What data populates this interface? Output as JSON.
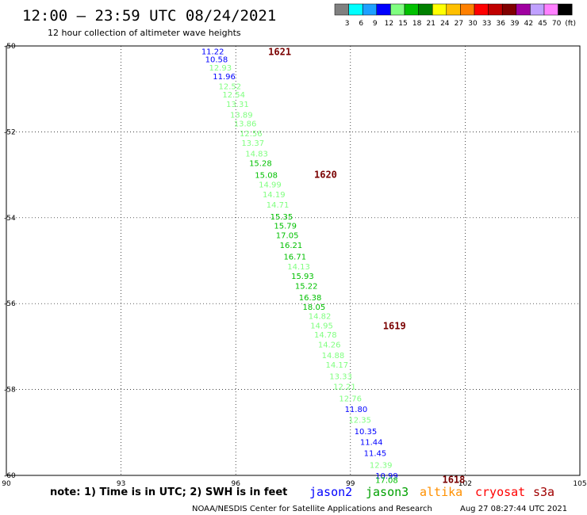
{
  "header": {
    "title": "12:00 – 23:59 UTC 08/24/2021",
    "subtitle": "12 hour collection of altimeter wave heights"
  },
  "colorbar": {
    "labels": [
      "3",
      "6",
      "9",
      "12",
      "15",
      "18",
      "21",
      "24",
      "27",
      "30",
      "33",
      "36",
      "39",
      "42",
      "45",
      "70",
      "(ft)"
    ],
    "colors": [
      "#808080",
      "#00ffff",
      "#1ea0ff",
      "#0000ff",
      "#80ff80",
      "#00c000",
      "#008000",
      "#ffff00",
      "#ffc000",
      "#ff8000",
      "#ff0000",
      "#c00000",
      "#800000",
      "#a000a0",
      "#c0a0ff",
      "#ff80ff",
      "#000000"
    ]
  },
  "notes": {
    "note": "note:  1) Time is in UTC;  2) SWH is in feet",
    "credit": "NOAA/NESDIS Center for Satellite Applications and Research",
    "timestamp": "Aug 27 08:27:44 UTC 2021"
  },
  "satellites": [
    {
      "name": "jason2",
      "color": "#0000ff"
    },
    {
      "name": "jason3",
      "color": "#00a000"
    },
    {
      "name": "altika",
      "color": "#ff9000"
    },
    {
      "name": "cryosat",
      "color": "#ff0000"
    },
    {
      "name": "s3a",
      "color": "#a00000"
    }
  ],
  "chart_data": {
    "type": "scatter",
    "title": "12:00 – 23:59 UTC 08/24/2021",
    "subtitle": "12 hour collection of altimeter wave heights",
    "xlim": [
      90,
      105
    ],
    "ylim": [
      -60,
      -50
    ],
    "x_ticks": [
      "90",
      "93",
      "96",
      "99",
      "102",
      "105"
    ],
    "y_ticks": [
      "-50",
      "-52",
      "-54",
      "-56",
      "-58",
      "-60"
    ],
    "grid": true,
    "units": "ft",
    "points": [
      {
        "x": 95.1,
        "y": -50.12,
        "v": "11.22",
        "c": "#0000ff"
      },
      {
        "x": 95.2,
        "y": -50.3,
        "v": "10.58",
        "c": "#0000ff"
      },
      {
        "x": 95.3,
        "y": -50.5,
        "v": "12.93",
        "c": "#80ff80"
      },
      {
        "x": 95.4,
        "y": -50.7,
        "v": "11.96",
        "c": "#0000ff"
      },
      {
        "x": 95.55,
        "y": -50.93,
        "v": "12.52",
        "c": "#80ff80"
      },
      {
        "x": 95.65,
        "y": -51.13,
        "v": "12.54",
        "c": "#80ff80"
      },
      {
        "x": 95.75,
        "y": -51.35,
        "v": "13.31",
        "c": "#80ff80"
      },
      {
        "x": 95.85,
        "y": -51.6,
        "v": "13.89",
        "c": "#80ff80"
      },
      {
        "x": 95.95,
        "y": -51.8,
        "v": "13.86",
        "c": "#80ff80"
      },
      {
        "x": 96.1,
        "y": -52.03,
        "v": "12.56",
        "c": "#80ff80"
      },
      {
        "x": 96.15,
        "y": -52.25,
        "v": "13.37",
        "c": "#80ff80"
      },
      {
        "x": 96.25,
        "y": -52.5,
        "v": "14.83",
        "c": "#80ff80"
      },
      {
        "x": 96.35,
        "y": -52.72,
        "v": "15.28",
        "c": "#00c000"
      },
      {
        "x": 96.5,
        "y": -53.0,
        "v": "15.08",
        "c": "#00c000"
      },
      {
        "x": 96.6,
        "y": -53.22,
        "v": "14.99",
        "c": "#80ff80"
      },
      {
        "x": 96.7,
        "y": -53.45,
        "v": "14.19",
        "c": "#80ff80"
      },
      {
        "x": 96.8,
        "y": -53.69,
        "v": "14.71",
        "c": "#80ff80"
      },
      {
        "x": 96.9,
        "y": -53.97,
        "v": "15.35",
        "c": "#00c000"
      },
      {
        "x": 97.0,
        "y": -54.18,
        "v": "15.79",
        "c": "#00c000"
      },
      {
        "x": 97.05,
        "y": -54.4,
        "v": "17.05",
        "c": "#00c000"
      },
      {
        "x": 97.15,
        "y": -54.63,
        "v": "16.21",
        "c": "#00c000"
      },
      {
        "x": 97.25,
        "y": -54.9,
        "v": "16.71",
        "c": "#00c000"
      },
      {
        "x": 97.35,
        "y": -55.13,
        "v": "14.13",
        "c": "#80ff80"
      },
      {
        "x": 97.45,
        "y": -55.35,
        "v": "15.93",
        "c": "#00c000"
      },
      {
        "x": 97.55,
        "y": -55.58,
        "v": "15.22",
        "c": "#00c000"
      },
      {
        "x": 97.65,
        "y": -55.85,
        "v": "16.38",
        "c": "#00c000"
      },
      {
        "x": 97.75,
        "y": -56.07,
        "v": "18.05",
        "c": "#00c000"
      },
      {
        "x": 97.9,
        "y": -56.28,
        "v": "14.82",
        "c": "#80ff80"
      },
      {
        "x": 97.95,
        "y": -56.5,
        "v": "14.95",
        "c": "#80ff80"
      },
      {
        "x": 98.05,
        "y": -56.72,
        "v": "14.78",
        "c": "#80ff80"
      },
      {
        "x": 98.15,
        "y": -56.95,
        "v": "14.26",
        "c": "#80ff80"
      },
      {
        "x": 98.25,
        "y": -57.2,
        "v": "14.88",
        "c": "#80ff80"
      },
      {
        "x": 98.35,
        "y": -57.42,
        "v": "14.17",
        "c": "#80ff80"
      },
      {
        "x": 98.45,
        "y": -57.68,
        "v": "13.33",
        "c": "#80ff80"
      },
      {
        "x": 98.55,
        "y": -57.92,
        "v": "12.21",
        "c": "#80ff80"
      },
      {
        "x": 98.7,
        "y": -58.2,
        "v": "12.76",
        "c": "#80ff80"
      },
      {
        "x": 98.85,
        "y": -58.45,
        "v": "11.80",
        "c": "#0000ff"
      },
      {
        "x": 98.95,
        "y": -58.7,
        "v": "12.35",
        "c": "#80ff80"
      },
      {
        "x": 99.1,
        "y": -58.97,
        "v": "10.35",
        "c": "#0000ff"
      },
      {
        "x": 99.25,
        "y": -59.22,
        "v": "11.44",
        "c": "#0000ff"
      },
      {
        "x": 99.35,
        "y": -59.47,
        "v": "11.45",
        "c": "#0000ff"
      },
      {
        "x": 99.5,
        "y": -59.75,
        "v": "12.39",
        "c": "#80ff80"
      },
      {
        "x": 99.65,
        "y": -60.0,
        "v": "10.99",
        "c": "#0000ff"
      },
      {
        "x": 99.65,
        "y": -60.1,
        "v": "17.08",
        "c": "#00c000"
      }
    ],
    "track_labels": [
      {
        "x": 96.85,
        "y": -50.14,
        "label": "1621"
      },
      {
        "x": 98.05,
        "y": -53.0,
        "label": "1620"
      },
      {
        "x": 99.85,
        "y": -56.52,
        "label": "1619"
      },
      {
        "x": 101.4,
        "y": -60.1,
        "label": "1618"
      }
    ]
  }
}
